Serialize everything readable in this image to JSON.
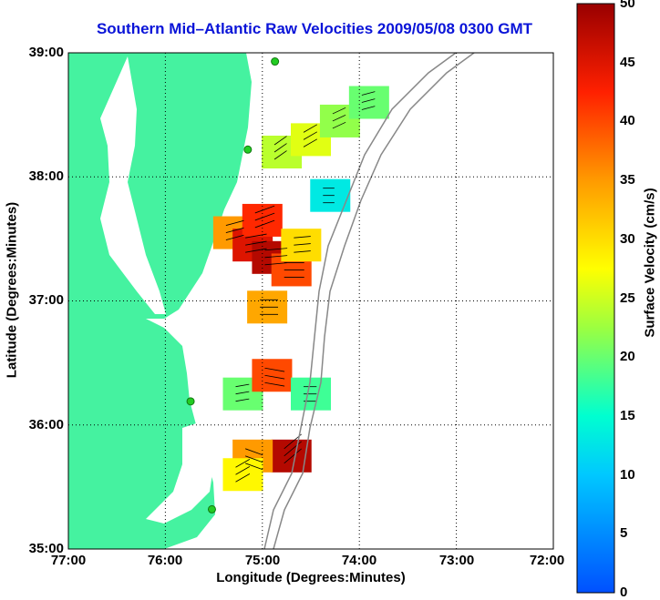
{
  "chart_data": {
    "type": "heatmap",
    "title": "Southern Mid–Atlantic Raw Velocities 2009/05/08 0300 GMT",
    "xlabel": "Longitude (Degrees:Minutes)",
    "ylabel": "Latitude (Degrees:Minutes)",
    "colorbar_label": "Surface Velocity (cm/s)",
    "xlim": [
      -77,
      -72
    ],
    "ylim": [
      35,
      39
    ],
    "x_ticks": [
      "77:00",
      "76:00",
      "75:00",
      "74:00",
      "73:00",
      "72:00"
    ],
    "y_ticks": [
      "35:00",
      "36:00",
      "37:00",
      "38:00",
      "39:00"
    ],
    "colorbar_ticks": [
      "0",
      "5",
      "10",
      "15",
      "20",
      "25",
      "30",
      "35",
      "40",
      "45",
      "50"
    ],
    "colorbar_range": [
      0,
      50
    ],
    "grid": true,
    "grid_style": "dotted",
    "land_color": "#45f2a0",
    "title_color": "#0a14d8",
    "station_color": "#22cc22",
    "stations": [
      {
        "lon": -74.87,
        "lat": 38.93
      },
      {
        "lon": -75.15,
        "lat": 38.22
      },
      {
        "lon": -75.74,
        "lat": 36.19
      },
      {
        "lon": -75.52,
        "lat": 35.32
      }
    ],
    "velocity_cells": [
      {
        "lon": -75.3,
        "lat": 37.55,
        "speed": 35,
        "dir": 15
      },
      {
        "lon": -75.1,
        "lat": 37.45,
        "speed": 45,
        "dir": 10
      },
      {
        "lon": -74.9,
        "lat": 37.35,
        "speed": 48,
        "dir": 5
      },
      {
        "lon": -74.7,
        "lat": 37.25,
        "speed": 40,
        "dir": 0
      },
      {
        "lon": -75.0,
        "lat": 37.65,
        "speed": 42,
        "dir": 20
      },
      {
        "lon": -74.6,
        "lat": 37.45,
        "speed": 30,
        "dir": 5
      },
      {
        "lon": -74.8,
        "lat": 38.2,
        "speed": 24,
        "dir": 35
      },
      {
        "lon": -74.5,
        "lat": 38.3,
        "speed": 26,
        "dir": 30
      },
      {
        "lon": -74.2,
        "lat": 38.45,
        "speed": 22,
        "dir": 25
      },
      {
        "lon": -73.9,
        "lat": 38.6,
        "speed": 20,
        "dir": 15
      },
      {
        "lon": -74.3,
        "lat": 37.85,
        "speed": 13,
        "dir": 0
      },
      {
        "lon": -74.95,
        "lat": 36.95,
        "speed": 34,
        "dir": 0
      },
      {
        "lon": -75.2,
        "lat": 36.25,
        "speed": 20,
        "dir": 10
      },
      {
        "lon": -74.9,
        "lat": 36.4,
        "speed": 40,
        "dir": -10
      },
      {
        "lon": -74.7,
        "lat": 35.75,
        "speed": 48,
        "dir": 40
      },
      {
        "lon": -75.1,
        "lat": 35.75,
        "speed": 35,
        "dir": -20
      },
      {
        "lon": -75.2,
        "lat": 35.6,
        "speed": 28,
        "dir": 30
      },
      {
        "lon": -74.5,
        "lat": 36.25,
        "speed": 18,
        "dir": 0
      }
    ]
  }
}
